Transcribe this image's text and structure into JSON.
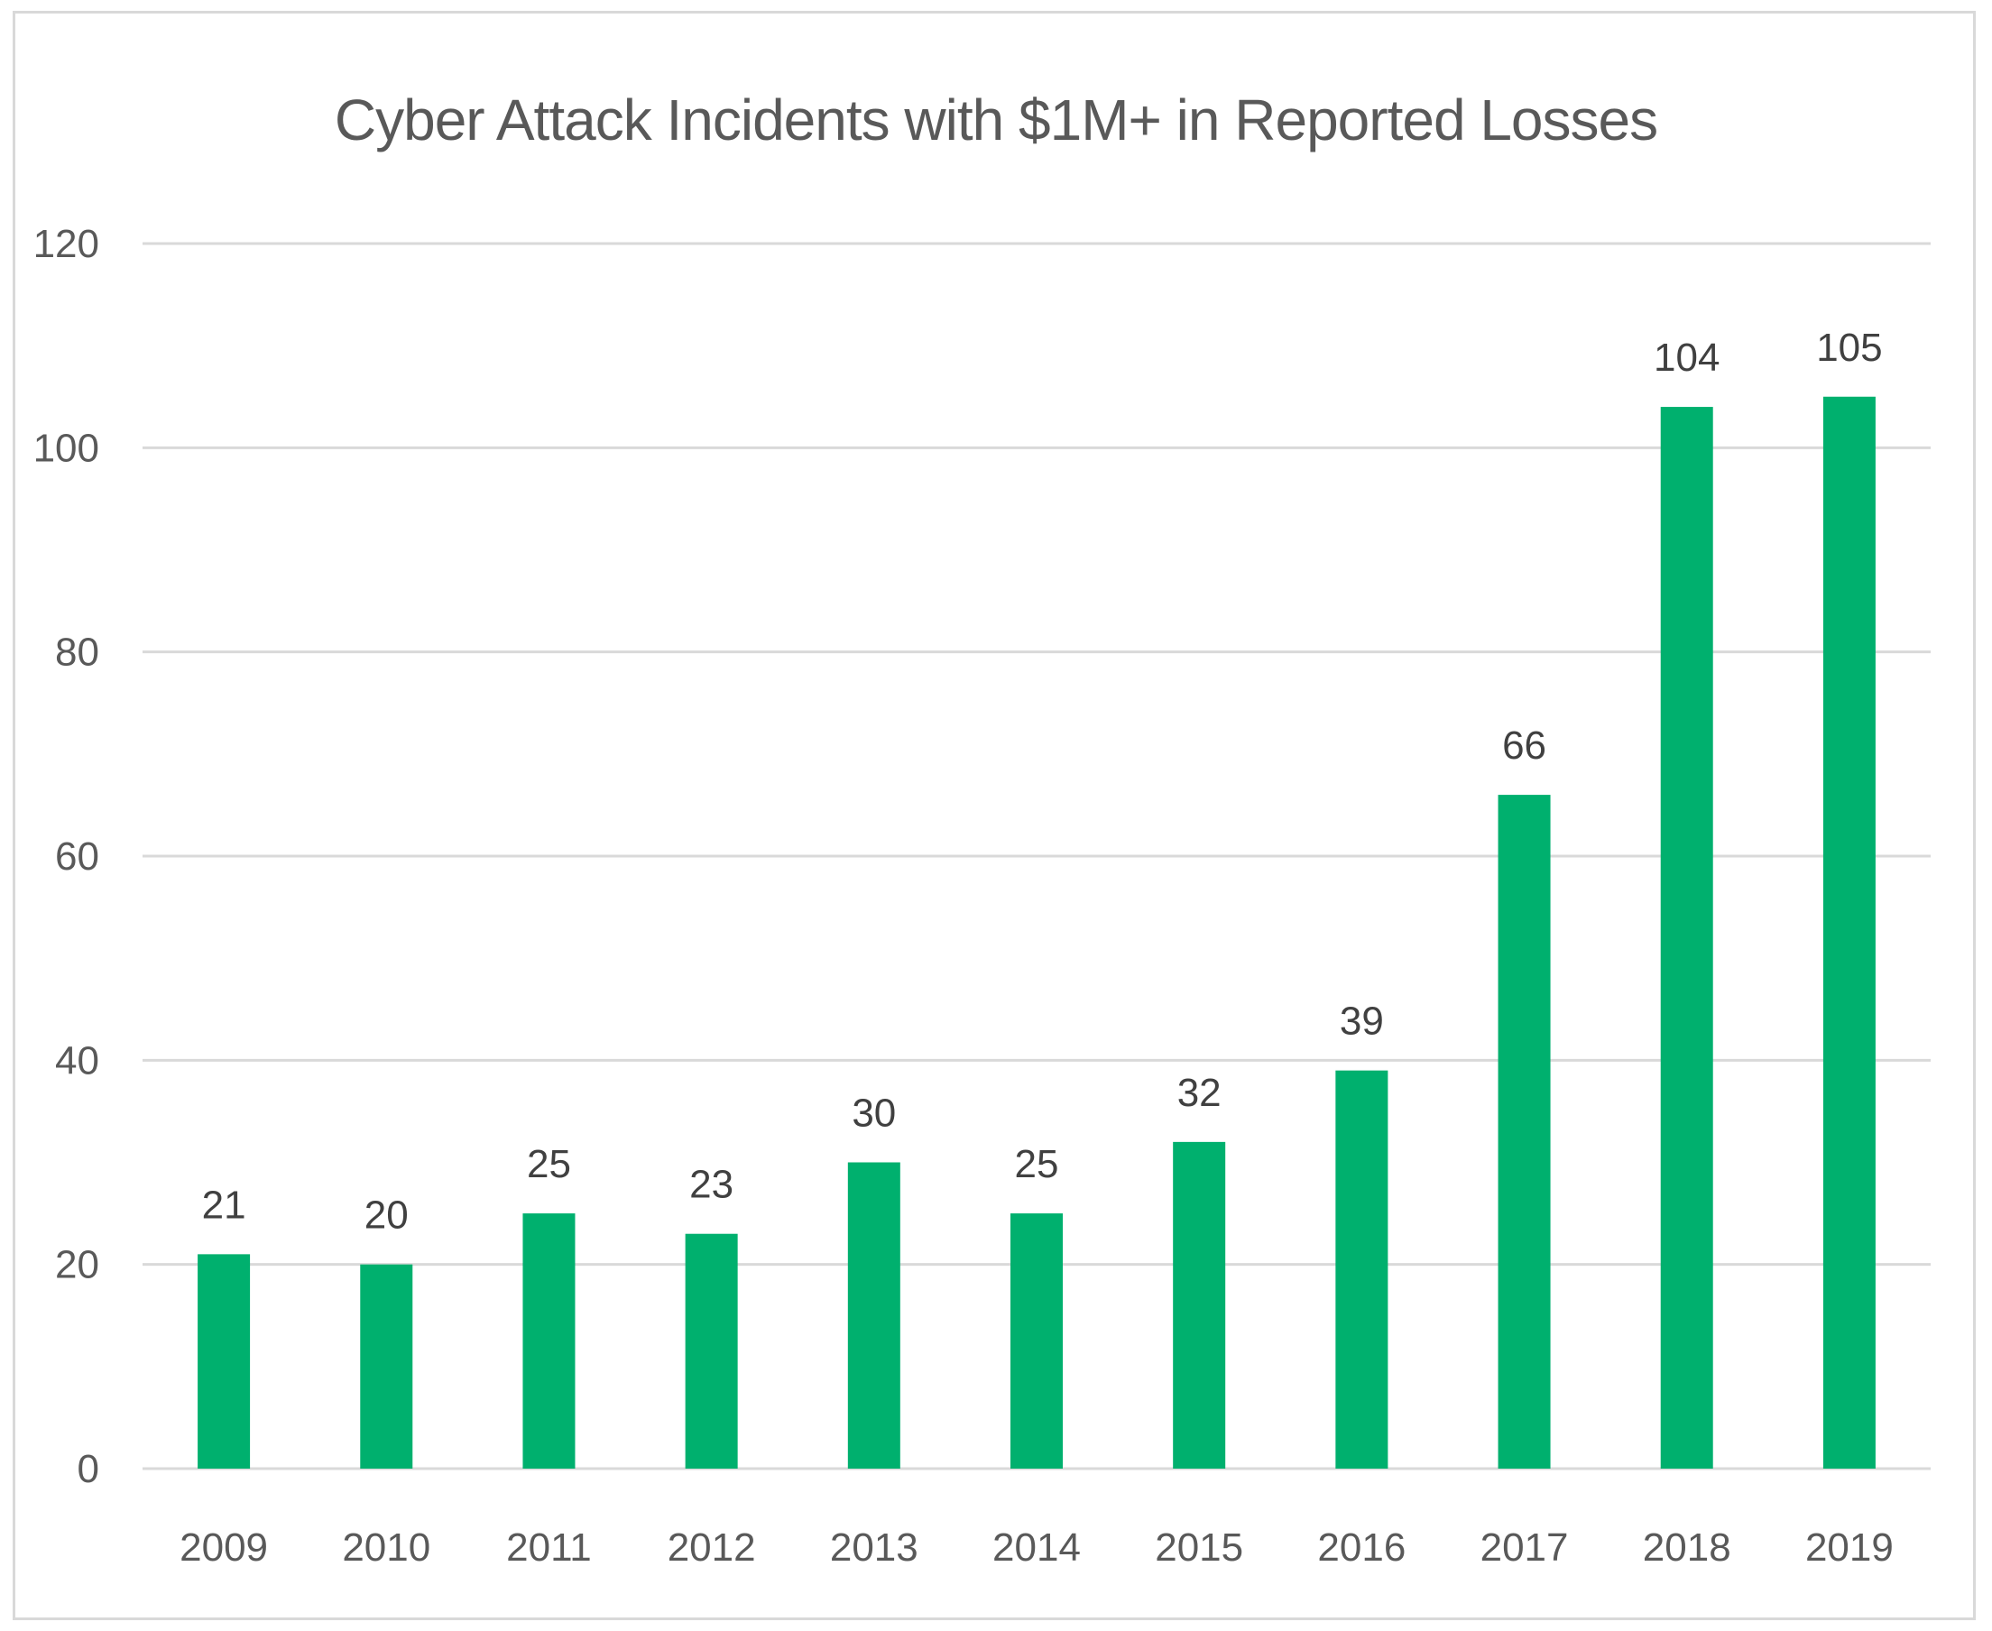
{
  "chart_data": {
    "type": "bar",
    "title": "Cyber Attack Incidents with $1M+ in Reported Losses",
    "xlabel": "",
    "ylabel": "",
    "categories": [
      "2009",
      "2010",
      "2011",
      "2012",
      "2013",
      "2014",
      "2015",
      "2016",
      "2017",
      "2018",
      "2019"
    ],
    "values": [
      21,
      20,
      25,
      23,
      30,
      25,
      32,
      39,
      66,
      104,
      105
    ],
    "data_labels": [
      "21",
      "20",
      "25",
      "23",
      "30",
      "25",
      "32",
      "39",
      "66",
      "104",
      "105"
    ],
    "ylim": [
      0,
      120
    ],
    "y_ticks": [
      0,
      20,
      40,
      60,
      80,
      100,
      120
    ],
    "y_tick_labels": [
      "0",
      "20",
      "40",
      "60",
      "80",
      "100",
      "120"
    ],
    "grid": true,
    "legend": "none",
    "colors": {
      "bar": "#00b06e",
      "grid": "#d9d9d9",
      "text": "#595959",
      "data_label": "#404040",
      "border": "#d9d9d9"
    }
  }
}
